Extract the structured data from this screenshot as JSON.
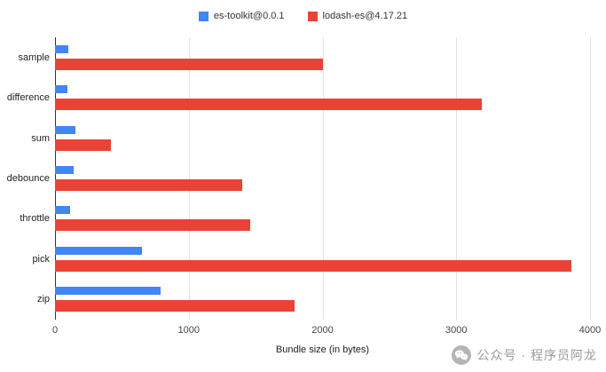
{
  "chart_data": {
    "type": "bar",
    "orientation": "horizontal",
    "title": "",
    "xlabel": "Bundle size (in bytes)",
    "ylabel": "",
    "xlim": [
      0,
      4000
    ],
    "xticks": [
      0,
      1000,
      2000,
      3000,
      4000
    ],
    "grid": true,
    "legend_position": "top",
    "categories": [
      "sample",
      "difference",
      "sum",
      "debounce",
      "throttle",
      "pick",
      "zip"
    ],
    "series": [
      {
        "name": "es-toolkit@0.0.1",
        "color": "#4285F4",
        "values": [
          100,
          90,
          150,
          140,
          110,
          650,
          790
        ]
      },
      {
        "name": "lodash-es@4.17.21",
        "color": "#EA4335",
        "values": [
          2000,
          3190,
          420,
          1400,
          1460,
          3860,
          1790
        ]
      }
    ]
  },
  "watermark": {
    "icon": "wechat-icon",
    "text": "公众号 · 程序员阿龙"
  }
}
